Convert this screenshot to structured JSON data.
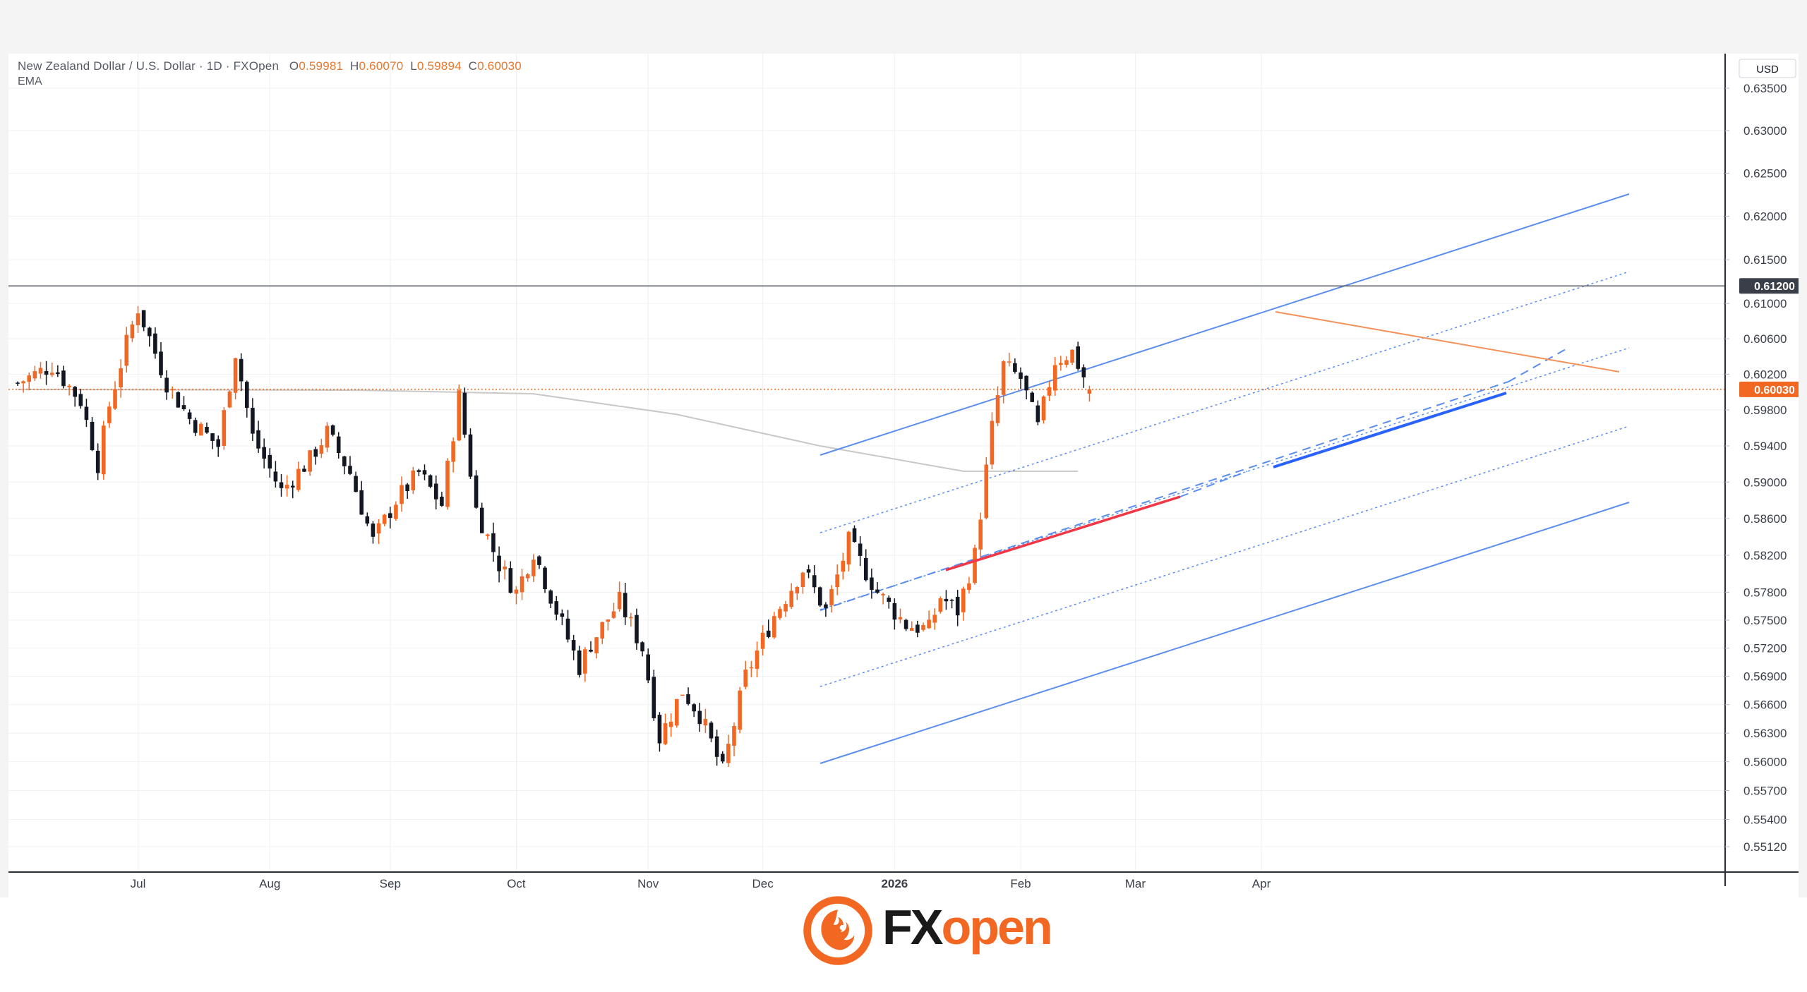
{
  "header": {
    "symbol": "New Zealand Dollar / U.S. Dollar · 1D · FXOpen",
    "open_label": "O",
    "open": "0.59981",
    "high_label": "H",
    "high": "0.60070",
    "low_label": "L",
    "low": "0.59894",
    "close_label": "C",
    "close": "0.60030",
    "indicator": "EMA"
  },
  "axis": {
    "currency": "USD",
    "price_ticks": [
      "0.63500",
      "0.63000",
      "0.62500",
      "0.62000",
      "0.61500",
      "0.61000",
      "0.60600",
      "0.60200",
      "0.59800",
      "0.59400",
      "0.59000",
      "0.58600",
      "0.58200",
      "0.57800",
      "0.57500",
      "0.57200",
      "0.56900",
      "0.56600",
      "0.56300",
      "0.56000",
      "0.55700",
      "0.55400",
      "0.55120"
    ],
    "time_ticks": [
      "Jul",
      "Aug",
      "Sep",
      "Oct",
      "Nov",
      "Dec",
      "2026",
      "Feb",
      "Mar",
      "Apr"
    ]
  },
  "markers": {
    "resistance_label": "0.61200",
    "last_price_label": "0.60030"
  },
  "logo": {
    "fx": "FX",
    "open": "open"
  },
  "colors": {
    "up": "#f26722",
    "down": "#131722",
    "channel": "#5b8def",
    "trend_red": "#f23645",
    "trend_orange": "#f2925a",
    "support_blue": "#2962ff",
    "resistance": "#555a66",
    "last_price": "#f26722",
    "ema": "#c8c8c8"
  },
  "chart_data": {
    "type": "candlestick",
    "instrument": "New Zealand Dollar / U.S. Dollar",
    "timeframe": "1D",
    "y_scale": "log",
    "ylim": [
      0.5495,
      0.6375
    ],
    "resistance_level": 0.612,
    "last_price": 0.6003,
    "ema_values": [
      0.6,
      0.5995,
      0.599,
      0.5985,
      0.5975,
      0.5965,
      0.595,
      0.593,
      0.5915,
      0.591
    ],
    "candles": []
  }
}
